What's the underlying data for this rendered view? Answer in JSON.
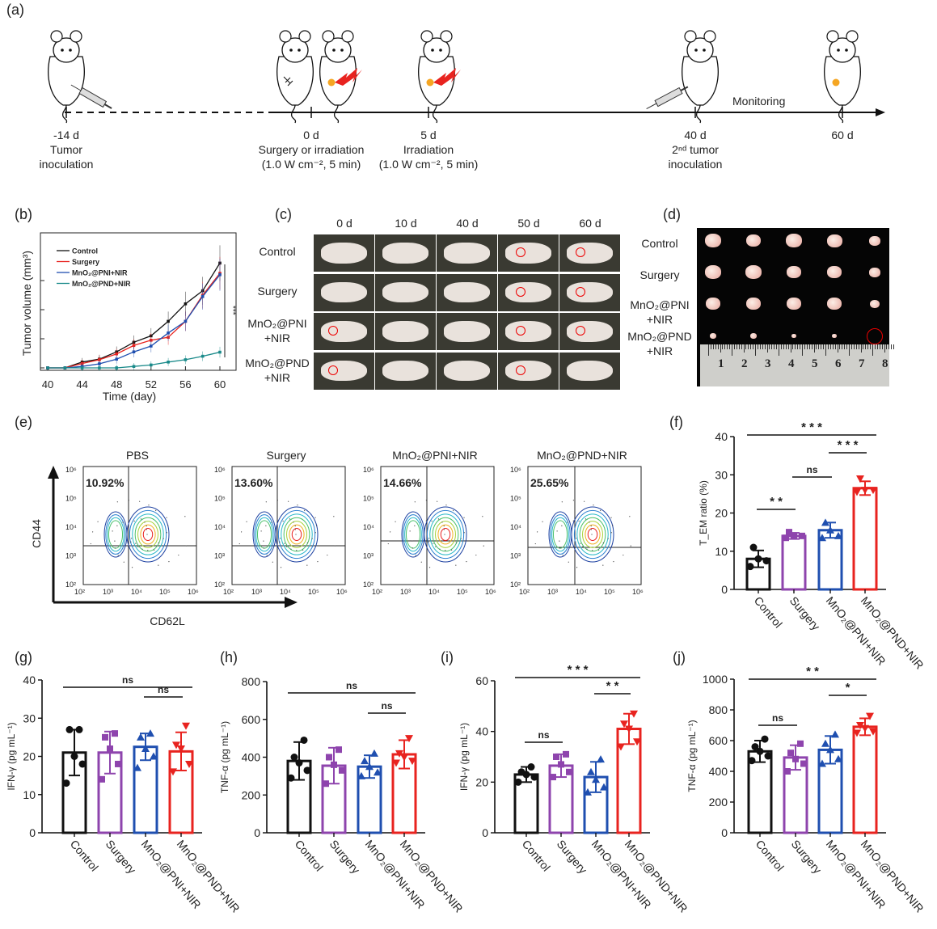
{
  "panels": {
    "a": "(a)",
    "b": "(b)",
    "c": "(c)",
    "d": "(d)",
    "e": "(e)",
    "f": "(f)",
    "g": "(g)",
    "h": "(h)",
    "i": "(i)",
    "j": "(j)"
  },
  "timeline": {
    "monitoring": "Monitoring",
    "events": [
      {
        "day": "-14 d",
        "line1": "Tumor",
        "line2": "inoculation"
      },
      {
        "day": "0 d",
        "line1": "Surgery or irradiation",
        "line2": "(1.0 W cm⁻², 5 min)"
      },
      {
        "day": "5 d",
        "line1": "Irradiation",
        "line2": "(1.0 W cm⁻², 5 min)"
      },
      {
        "day": "40 d",
        "line1": "2ⁿᵈ tumor",
        "line2": "inoculation"
      },
      {
        "day": "60 d",
        "line1": "",
        "line2": ""
      }
    ]
  },
  "photos": {
    "columns": [
      "0 d",
      "10 d",
      "40 d",
      "50 d",
      "60 d"
    ],
    "rows": [
      [
        "Control",
        ""
      ],
      [
        "Surgery",
        ""
      ],
      [
        "MnO₂@PNI",
        "+NIR"
      ],
      [
        "MnO₂@PND",
        "+NIR"
      ]
    ]
  },
  "tumors": {
    "rows": [
      [
        "Control",
        ""
      ],
      [
        "Surgery",
        ""
      ],
      [
        "MnO₂@PNI",
        "+NIR"
      ],
      [
        "MnO₂@PND",
        "+NIR"
      ]
    ],
    "ruler": [
      "1",
      "2",
      "3",
      "4",
      "5",
      "6",
      "7",
      "8"
    ]
  },
  "flow": {
    "xlabel": "CD62L",
    "ylabel": "CD44",
    "ticks": [
      "10²",
      "10³",
      "10⁴",
      "10⁵",
      "10⁶"
    ],
    "plots": [
      {
        "title": "PBS",
        "percent": "10.92%"
      },
      {
        "title": "Surgery",
        "percent": "13.60%"
      },
      {
        "title": "MnO₂@PNI+NIR",
        "percent": "14.66%"
      },
      {
        "title": "MnO₂@PND+NIR",
        "percent": "25.65%"
      }
    ]
  },
  "colors": {
    "control": "#111111",
    "surgery": "#8e44ad",
    "pni": "#1f4fb0",
    "pnd": "#e8231f",
    "pnd_line": "#1a8a8a"
  },
  "chart_data": [
    {
      "id": "b",
      "type": "line",
      "title": "",
      "xlabel": "Time (day)",
      "ylabel": "Tumor volume (mm³)",
      "xlim": [
        40,
        60
      ],
      "ylim": [
        0,
        4
      ],
      "xticks": [
        "40",
        "44",
        "48",
        "52",
        "56",
        "60"
      ],
      "x": [
        40,
        42,
        44,
        46,
        48,
        50,
        52,
        54,
        56,
        58,
        60
      ],
      "series": [
        {
          "name": "Control",
          "values": [
            0,
            0,
            0.2,
            0.3,
            0.55,
            0.88,
            1.1,
            1.6,
            2.2,
            2.65,
            3.6
          ]
        },
        {
          "name": "Surgery",
          "values": [
            0,
            0,
            0.15,
            0.28,
            0.48,
            0.77,
            0.95,
            1.05,
            1.6,
            2.5,
            3.25
          ]
        },
        {
          "name": "MnO₂@PNI+NIR",
          "values": [
            0,
            0,
            0.05,
            0.14,
            0.3,
            0.55,
            0.75,
            1.2,
            1.6,
            2.45,
            3.2
          ]
        },
        {
          "name": "MnO₂@PND+NIR",
          "values": [
            0,
            0,
            0,
            0,
            0,
            0.05,
            0.1,
            0.2,
            0.28,
            0.4,
            0.54
          ]
        }
      ],
      "annotation": "***",
      "legend": "top-left"
    },
    {
      "id": "f",
      "type": "bar",
      "ylabel": "T_EM ratio (%)",
      "ylim": [
        0,
        40
      ],
      "yticks": [
        "0",
        "10",
        "20",
        "30",
        "40"
      ],
      "categories": [
        "Control",
        "Surgery",
        "MnO₂@PNI+NIR",
        "MnO₂@PND+NIR"
      ],
      "values": [
        8,
        14,
        15.5,
        26.5
      ],
      "errors": [
        2.2,
        0.8,
        2,
        1.8
      ],
      "points": [
        [
          6,
          7.5,
          8,
          11
        ],
        [
          13.5,
          14,
          14,
          15
        ],
        [
          13.5,
          14,
          15.5,
          17.5
        ],
        [
          25.5,
          26,
          26,
          29
        ]
      ],
      "significance": [
        {
          "from": 0,
          "to": 1,
          "label": "* *"
        },
        {
          "from": 1,
          "to": 2,
          "label": "ns"
        },
        {
          "from": 2,
          "to": 3,
          "label": "* * *"
        },
        {
          "from": 0,
          "to": 3,
          "label": "* * *"
        }
      ]
    },
    {
      "id": "g",
      "type": "bar",
      "ylabel": "IFN-γ (pg mL⁻¹)",
      "ylim": [
        0,
        40
      ],
      "yticks": [
        "0",
        "10",
        "20",
        "30",
        "40"
      ],
      "categories": [
        "Control",
        "Surgery",
        "MnO₂@PNI+NIR",
        "MnO₂@PND+NIR"
      ],
      "values": [
        21,
        21,
        22.5,
        21.3
      ],
      "errors": [
        6,
        5.5,
        3.5,
        5
      ],
      "points": [
        [
          13,
          18,
          20,
          27,
          27
        ],
        [
          14,
          18,
          22,
          25,
          26
        ],
        [
          17,
          20,
          22,
          25,
          26
        ],
        [
          16,
          18,
          22,
          23,
          28
        ]
      ],
      "significance": [
        {
          "from": 2,
          "to": 3,
          "label": "ns"
        },
        {
          "from": 0,
          "to": 3,
          "label": "ns"
        }
      ]
    },
    {
      "id": "h",
      "type": "bar",
      "ylabel": "TNF-α (pg mL⁻¹)",
      "ylim": [
        0,
        800
      ],
      "yticks": [
        "0",
        "200",
        "400",
        "600",
        "800"
      ],
      "categories": [
        "Control",
        "Surgery",
        "MnO₂@PNI+NIR",
        "MnO₂@PND+NIR"
      ],
      "values": [
        380,
        355,
        350,
        415
      ],
      "errors": [
        100,
        95,
        60,
        75
      ],
      "points": [
        [
          290,
          330,
          370,
          400,
          490
        ],
        [
          260,
          330,
          360,
          400,
          440
        ],
        [
          300,
          320,
          350,
          380,
          420
        ],
        [
          370,
          380,
          400,
          420,
          500
        ]
      ],
      "significance": [
        {
          "from": 2,
          "to": 3,
          "label": "ns"
        },
        {
          "from": 0,
          "to": 3,
          "label": "ns"
        }
      ]
    },
    {
      "id": "i",
      "type": "bar",
      "ylabel": "IFN-γ (pg mL⁻¹)",
      "ylim": [
        0,
        60
      ],
      "yticks": [
        "0",
        "20",
        "40",
        "60"
      ],
      "categories": [
        "Control",
        "Surgery",
        "MnO₂@PNI+NIR",
        "MnO₂@PND+NIR"
      ],
      "values": [
        23,
        26.5,
        22,
        41
      ],
      "errors": [
        3,
        4.5,
        6,
        6
      ],
      "points": [
        [
          20,
          22,
          23,
          24,
          26
        ],
        [
          22,
          24,
          27,
          30,
          31
        ],
        [
          16,
          18,
          21,
          24,
          29
        ],
        [
          34,
          36,
          41,
          43,
          47
        ]
      ],
      "significance": [
        {
          "from": 0,
          "to": 1,
          "label": "ns"
        },
        {
          "from": 2,
          "to": 3,
          "label": "* *"
        },
        {
          "from": 0,
          "to": 3,
          "label": "* * *"
        }
      ]
    },
    {
      "id": "j",
      "type": "bar",
      "ylabel": "TNF-α (pg mL⁻¹)",
      "ylim": [
        0,
        1000
      ],
      "yticks": [
        "0",
        "200",
        "400",
        "600",
        "800",
        "1000"
      ],
      "categories": [
        "Control",
        "Surgery",
        "MnO₂@PNI+NIR",
        "MnO₂@PND+NIR"
      ],
      "values": [
        530,
        490,
        540,
        690
      ],
      "errors": [
        70,
        80,
        90,
        55
      ],
      "points": [
        [
          470,
          500,
          530,
          560,
          610
        ],
        [
          400,
          450,
          480,
          520,
          580
        ],
        [
          450,
          480,
          540,
          580,
          640
        ],
        [
          650,
          660,
          680,
          700,
          760
        ]
      ],
      "significance": [
        {
          "from": 0,
          "to": 1,
          "label": "ns"
        },
        {
          "from": 2,
          "to": 3,
          "label": "*"
        },
        {
          "from": 0,
          "to": 3,
          "label": "* *"
        }
      ]
    }
  ]
}
